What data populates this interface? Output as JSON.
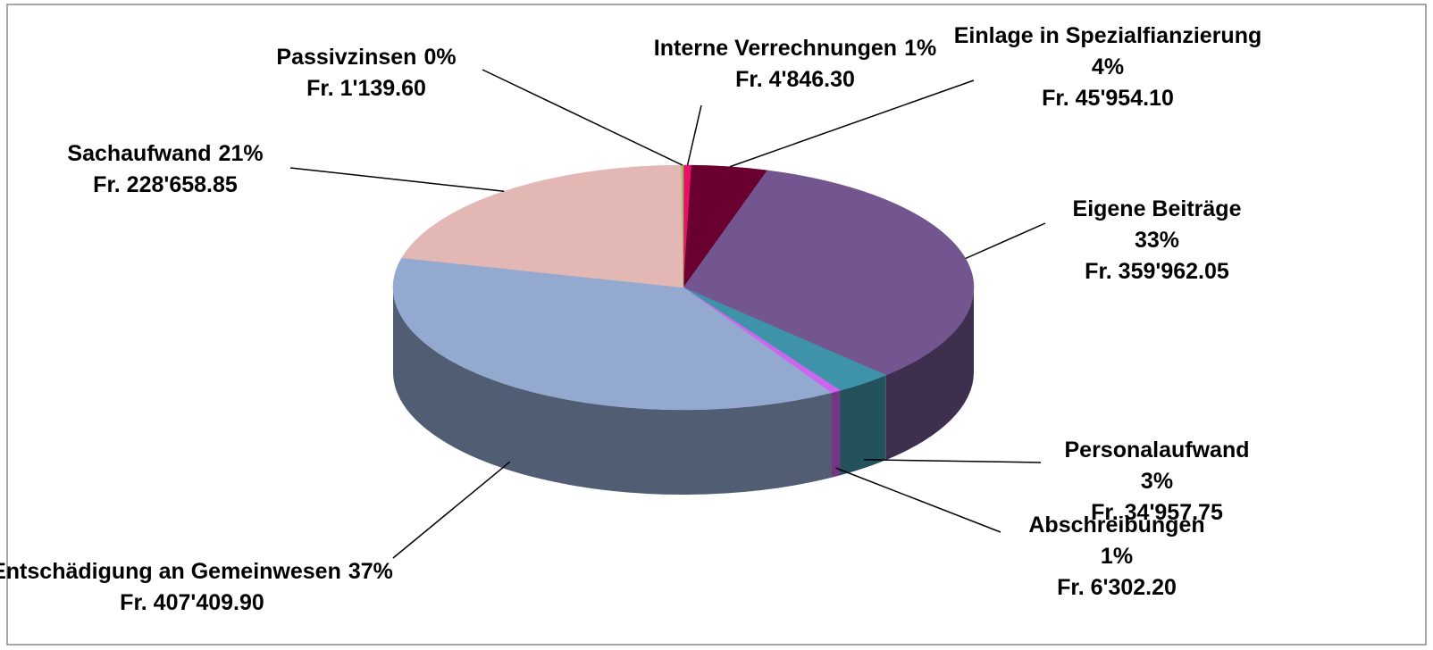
{
  "chart_data": {
    "type": "pie3d",
    "categories": [
      "Interne Verrechnungen",
      "Einlage in Spezialfianzierung",
      "Eigene Beiträge",
      "Personalaufwand",
      "Abschreibungen",
      "Entschädigung an Gemeinwesen",
      "Sachaufwand",
      "Passivzinsen"
    ],
    "values": [
      4846.3,
      45954.1,
      359962.05,
      34957.75,
      6302.2,
      407409.9,
      228658.85,
      1139.6
    ],
    "value_labels": [
      "Fr. 4'846.30",
      "Fr. 45'954.10",
      "Fr. 359'962.05",
      "Fr. 34'957.75",
      "Fr. 6'302.20",
      "Fr. 407'409.90",
      "Fr. 228'658.85",
      "Fr. 1'139.60"
    ],
    "percent_labels": [
      "1%",
      "4%",
      "33%",
      "3%",
      "1%",
      "37%",
      "21%",
      "0%"
    ],
    "colors": [
      "#e8106a",
      "#6a0030",
      "#735590",
      "#3f93a8",
      "#cc66ee",
      "#93a9d0",
      "#e3b7b4",
      "#9bbb59"
    ]
  }
}
